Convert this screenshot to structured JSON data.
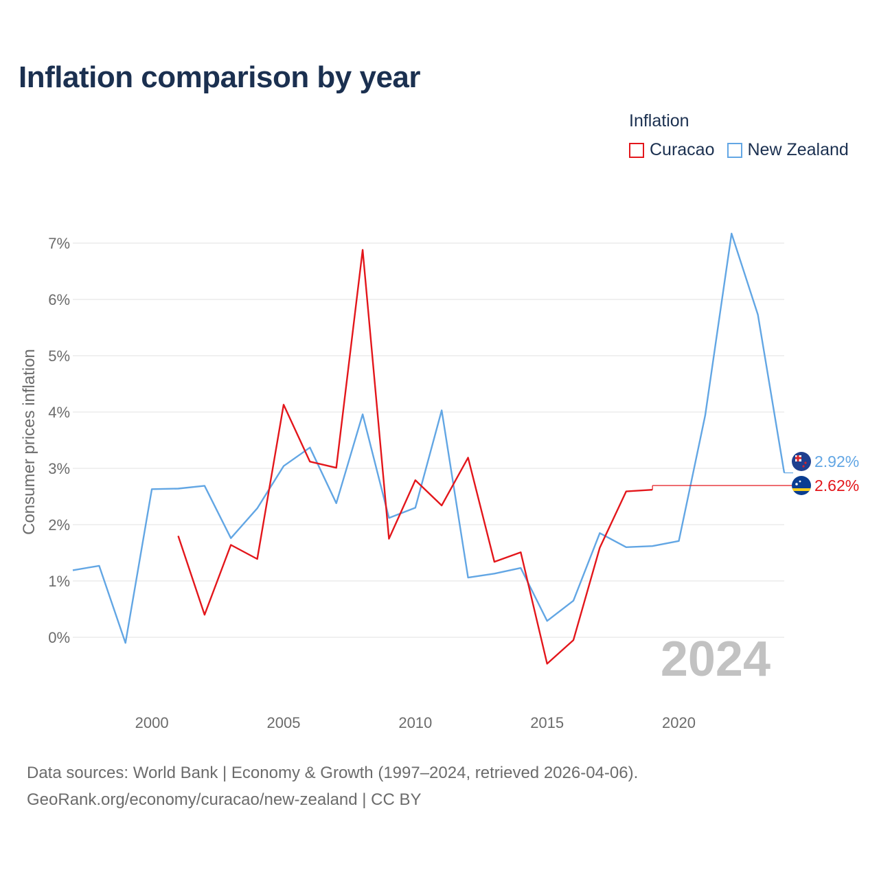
{
  "title": "Inflation comparison by year",
  "legend": {
    "title": "Inflation",
    "items": [
      {
        "name": "Curacao",
        "color": "#e3161b"
      },
      {
        "name": "New Zealand",
        "color": "#62a6e4"
      }
    ]
  },
  "source": {
    "line1": "Data sources: World Bank | Economy & Growth (1997–2024, retrieved 2026-04-06).",
    "line2": "GeoRank.org/economy/curacao/new-zealand | CC BY"
  },
  "chart_data": {
    "type": "line",
    "title": "Inflation comparison by year",
    "xlabel": "",
    "ylabel": "Consumer prices inflation",
    "xlim": [
      1997,
      2024
    ],
    "ylim": [
      -1.0,
      7.5
    ],
    "x_ticks": [
      2000,
      2005,
      2010,
      2015,
      2020
    ],
    "x_tick_labels": [
      "2000",
      "2005",
      "2010",
      "2015",
      "2020"
    ],
    "y_ticks": [
      0,
      1,
      2,
      3,
      4,
      5,
      6,
      7
    ],
    "y_tick_labels": [
      "0%",
      "1%",
      "2%",
      "3%",
      "4%",
      "5%",
      "6%",
      "7%"
    ],
    "grid": true,
    "year_watermark": "2024",
    "series": [
      {
        "name": "Curacao",
        "color": "#e3161b",
        "x": [
          2001,
          2002,
          2003,
          2004,
          2005,
          2006,
          2007,
          2008,
          2009,
          2010,
          2011,
          2012,
          2013,
          2014,
          2015,
          2016,
          2017,
          2018,
          2019
        ],
        "values": [
          1.8,
          0.4,
          1.64,
          1.39,
          4.13,
          3.12,
          3.01,
          6.88,
          1.75,
          2.79,
          2.34,
          3.19,
          1.34,
          1.51,
          -0.47,
          -0.05,
          1.59,
          2.59,
          2.62
        ],
        "end_label": "2.62%",
        "flag": "curacao-flag-icon"
      },
      {
        "name": "New Zealand",
        "color": "#62a6e4",
        "x": [
          1997,
          1998,
          1999,
          2000,
          2001,
          2002,
          2003,
          2004,
          2005,
          2006,
          2007,
          2008,
          2009,
          2010,
          2011,
          2012,
          2013,
          2014,
          2015,
          2016,
          2017,
          2018,
          2019,
          2020,
          2021,
          2022,
          2023,
          2024
        ],
        "values": [
          1.19,
          1.27,
          -0.1,
          2.63,
          2.64,
          2.69,
          1.76,
          2.29,
          3.04,
          3.37,
          2.38,
          3.96,
          2.12,
          2.3,
          4.03,
          1.06,
          1.13,
          1.23,
          0.29,
          0.65,
          1.85,
          1.6,
          1.62,
          1.71,
          3.94,
          7.17,
          5.73,
          2.92
        ],
        "end_label": "2.92%",
        "flag": "new-zealand-flag-icon"
      }
    ]
  }
}
